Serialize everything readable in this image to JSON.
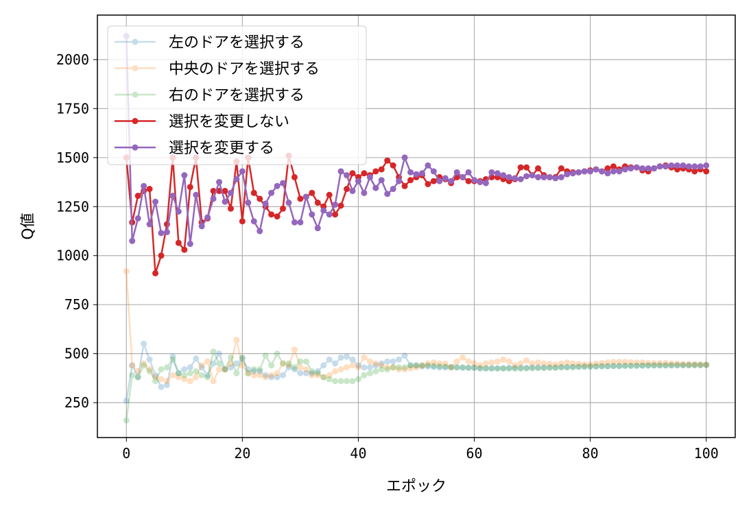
{
  "chart_data": {
    "type": "line",
    "title": "",
    "xlabel": "エポック",
    "ylabel": "Q値",
    "xlim": [
      -5,
      105
    ],
    "ylim": [
      72,
      2227
    ],
    "xticks": [
      0,
      20,
      40,
      60,
      80,
      100
    ],
    "yticks": [
      250,
      500,
      750,
      1000,
      1250,
      1500,
      1750,
      2000
    ],
    "grid": true,
    "legend_position": "upper-left",
    "series": [
      {
        "name": "左のドアを選択する",
        "color": "#1f77b4",
        "alpha": 0.25,
        "values": [
          260,
          440,
          380,
          550,
          470,
          390,
          330,
          340,
          485,
          400,
          420,
          430,
          475,
          430,
          390,
          450,
          500,
          420,
          430,
          450,
          475,
          420,
          410,
          410,
          390,
          380,
          380,
          390,
          430,
          420,
          400,
          400,
          400,
          410,
          440,
          470,
          450,
          480,
          485,
          470,
          440,
          430,
          430,
          440,
          450,
          460,
          460,
          470,
          490,
          440,
          440,
          435,
          435,
          432,
          430,
          430,
          430,
          430,
          428,
          428,
          428,
          425,
          425,
          425,
          425,
          425,
          428,
          428,
          428,
          428,
          430,
          430,
          430,
          430,
          430,
          432,
          432,
          432,
          434,
          434,
          435,
          435,
          436,
          436,
          437,
          437,
          438,
          438,
          438,
          439,
          439,
          440,
          440,
          440,
          440,
          440,
          441,
          441,
          441,
          441,
          442
        ]
      },
      {
        "name": "中央のドアを選択する",
        "color": "#ff7f0e",
        "alpha": 0.25,
        "values": [
          920,
          440,
          410,
          450,
          420,
          380,
          370,
          360,
          390,
          380,
          370,
          360,
          380,
          440,
          460,
          360,
          420,
          420,
          450,
          570,
          440,
          400,
          390,
          390,
          380,
          390,
          400,
          450,
          440,
          520,
          430,
          420,
          390,
          390,
          380,
          390,
          410,
          420,
          430,
          440,
          430,
          480,
          460,
          450,
          440,
          430,
          430,
          420,
          420,
          425,
          430,
          440,
          450,
          455,
          450,
          450,
          430,
          460,
          480,
          460,
          450,
          440,
          450,
          455,
          460,
          470,
          460,
          440,
          450,
          465,
          450,
          455,
          450,
          448,
          445,
          450,
          455,
          450,
          448,
          445,
          445,
          450,
          452,
          455,
          458,
          458,
          458,
          456,
          455,
          455,
          452,
          452,
          452,
          452,
          450,
          450,
          448,
          448,
          446,
          446,
          445
        ]
      },
      {
        "name": "右のドアを選択する",
        "color": "#2ca02c",
        "alpha": 0.25,
        "values": [
          160,
          390,
          380,
          440,
          410,
          360,
          420,
          430,
          470,
          400,
          390,
          400,
          410,
          390,
          380,
          510,
          450,
          420,
          480,
          400,
          480,
          400,
          420,
          420,
          490,
          440,
          500,
          450,
          450,
          430,
          460,
          460,
          410,
          400,
          380,
          370,
          360,
          360,
          360,
          360,
          370,
          390,
          400,
          410,
          420,
          420,
          430,
          430,
          430,
          440,
          440,
          440,
          440,
          438,
          436,
          434,
          432,
          430,
          430,
          428,
          428,
          426,
          425,
          425,
          425,
          425,
          424,
          424,
          424,
          425,
          425,
          426,
          426,
          428,
          428,
          430,
          430,
          432,
          432,
          434,
          434,
          435,
          436,
          436,
          437,
          437,
          438,
          438,
          439,
          439,
          440,
          440,
          440,
          440,
          441,
          441,
          441,
          441,
          442,
          442,
          442
        ]
      },
      {
        "name": "選択を変更しない",
        "color": "#d62728",
        "alpha": 1,
        "values": [
          1500,
          1170,
          1305,
          1330,
          1340,
          910,
          1000,
          1160,
          1500,
          1065,
          1030,
          1350,
          1500,
          1170,
          1190,
          1330,
          1330,
          1330,
          1240,
          1480,
          1175,
          1500,
          1320,
          1290,
          1250,
          1210,
          1200,
          1240,
          1510,
          1400,
          1290,
          1300,
          1320,
          1270,
          1250,
          1310,
          1210,
          1255,
          1340,
          1420,
          1400,
          1420,
          1410,
          1430,
          1440,
          1485,
          1460,
          1400,
          1355,
          1385,
          1400,
          1410,
          1365,
          1380,
          1400,
          1390,
          1370,
          1400,
          1400,
          1380,
          1380,
          1380,
          1390,
          1400,
          1400,
          1390,
          1380,
          1390,
          1450,
          1450,
          1410,
          1445,
          1410,
          1400,
          1400,
          1445,
          1430,
          1425,
          1425,
          1430,
          1435,
          1440,
          1430,
          1445,
          1455,
          1440,
          1455,
          1450,
          1450,
          1435,
          1430,
          1445,
          1455,
          1460,
          1450,
          1440,
          1445,
          1440,
          1430,
          1440,
          1430
        ]
      },
      {
        "name": "選択を変更する",
        "color": "#9467bd",
        "alpha": 1,
        "values": [
          2120,
          1075,
          1190,
          1355,
          1160,
          1275,
          1115,
          1120,
          1305,
          1225,
          1410,
          1060,
          1310,
          1150,
          1195,
          1290,
          1375,
          1275,
          1320,
          1390,
          1430,
          1270,
          1175,
          1125,
          1265,
          1320,
          1355,
          1370,
          1270,
          1170,
          1170,
          1300,
          1210,
          1140,
          1230,
          1210,
          1260,
          1430,
          1410,
          1330,
          1380,
          1320,
          1400,
          1345,
          1385,
          1315,
          1340,
          1380,
          1500,
          1425,
          1415,
          1420,
          1460,
          1430,
          1380,
          1395,
          1380,
          1425,
          1400,
          1425,
          1385,
          1375,
          1370,
          1425,
          1420,
          1410,
          1400,
          1395,
          1390,
          1405,
          1410,
          1400,
          1400,
          1400,
          1395,
          1400,
          1415,
          1420,
          1425,
          1430,
          1430,
          1440,
          1430,
          1420,
          1430,
          1430,
          1440,
          1445,
          1450,
          1445,
          1445,
          1445,
          1455,
          1455,
          1460,
          1460,
          1460,
          1455,
          1455,
          1455,
          1460
        ]
      }
    ]
  }
}
